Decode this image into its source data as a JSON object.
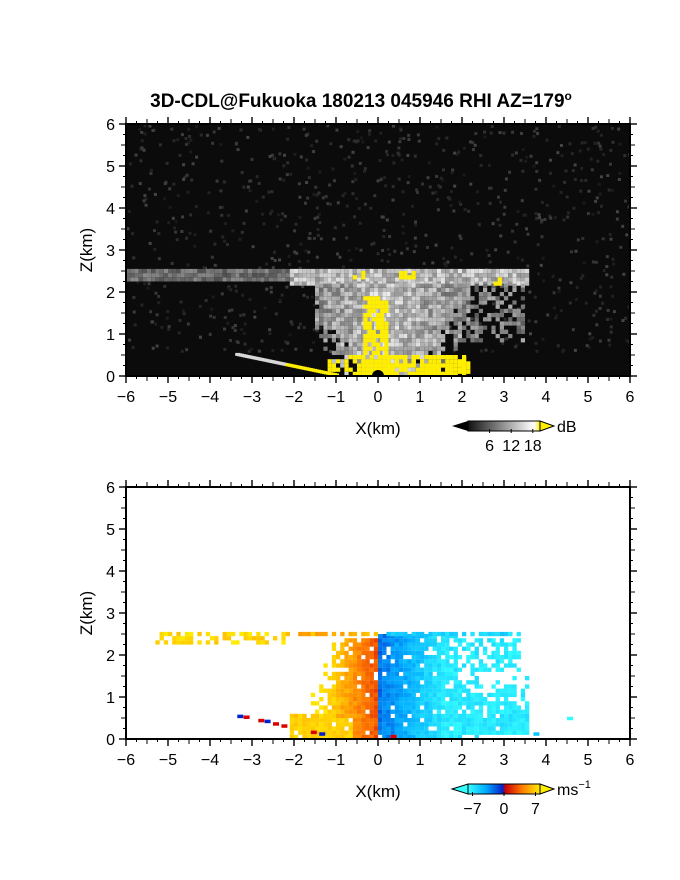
{
  "figure": {
    "title": "3D-CDL@Fukuoka 180213 045946 RHI AZ=179",
    "title_superscript": "o"
  },
  "colors": {
    "panel_background": "#0b0b0b",
    "snr_low": "#1a1a1a",
    "snr_high": "#f2f2f2",
    "snr_saturated": "#ffee00",
    "velocity_negative": [
      "#00e5ff",
      "#0088ff",
      "#0033cc"
    ],
    "velocity_positive": [
      "#cc1a00",
      "#ff5a00",
      "#ffb000",
      "#ffee00"
    ]
  },
  "chart_data": [
    {
      "type": "heatmap",
      "panel": "SNR",
      "title": "",
      "xlabel": "X(km)",
      "ylabel": "Z(km)",
      "xlim": [
        -6,
        6
      ],
      "ylim": [
        0,
        6
      ],
      "xticks": [
        "−6",
        "−5",
        "−4",
        "−3",
        "−2",
        "−1",
        "0",
        "1",
        "2",
        "3",
        "4",
        "5",
        "6"
      ],
      "yticks": [
        "0",
        "1",
        "2",
        "3",
        "4",
        "5",
        "6"
      ],
      "colorbar": {
        "unit": "dB",
        "ticks": [
          "6",
          "12",
          "18"
        ],
        "range": [
          0,
          20
        ]
      },
      "features": {
        "cloud_layer": {
          "z_km": [
            2.2,
            2.5
          ],
          "x_km": [
            -6.0,
            3.5
          ]
        },
        "bright_region": {
          "x_km": [
            -1.5,
            2.2
          ],
          "z_km": [
            0.0,
            2.4
          ]
        },
        "ground_clutter_line": {
          "x_km": [
            -3.4,
            -1.0
          ],
          "z_km": [
            0.0,
            0.5
          ]
        }
      }
    },
    {
      "type": "heatmap",
      "panel": "Doppler velocity",
      "title": "",
      "xlabel": "X(km)",
      "ylabel": "Z(km)",
      "xlim": [
        -6,
        6
      ],
      "ylim": [
        0,
        6
      ],
      "xticks": [
        "−6",
        "−5",
        "−4",
        "−3",
        "−2",
        "−1",
        "0",
        "1",
        "2",
        "3",
        "4",
        "5",
        "6"
      ],
      "yticks": [
        "0",
        "1",
        "2",
        "3",
        "4",
        "5",
        "6"
      ],
      "colorbar": {
        "unit": "ms",
        "unit_superscript": "−1",
        "ticks": [
          "−7",
          "0",
          "7"
        ],
        "range": [
          -8,
          8
        ]
      },
      "features": {
        "positive_velocity_side": {
          "x_km": [
            -5.5,
            0.0
          ],
          "value_ms": [
            2,
            8
          ]
        },
        "negative_velocity_side": {
          "x_km": [
            0.0,
            4.5
          ],
          "value_ms": [
            -8,
            -2
          ]
        },
        "echo_top_km": 2.5
      }
    }
  ]
}
